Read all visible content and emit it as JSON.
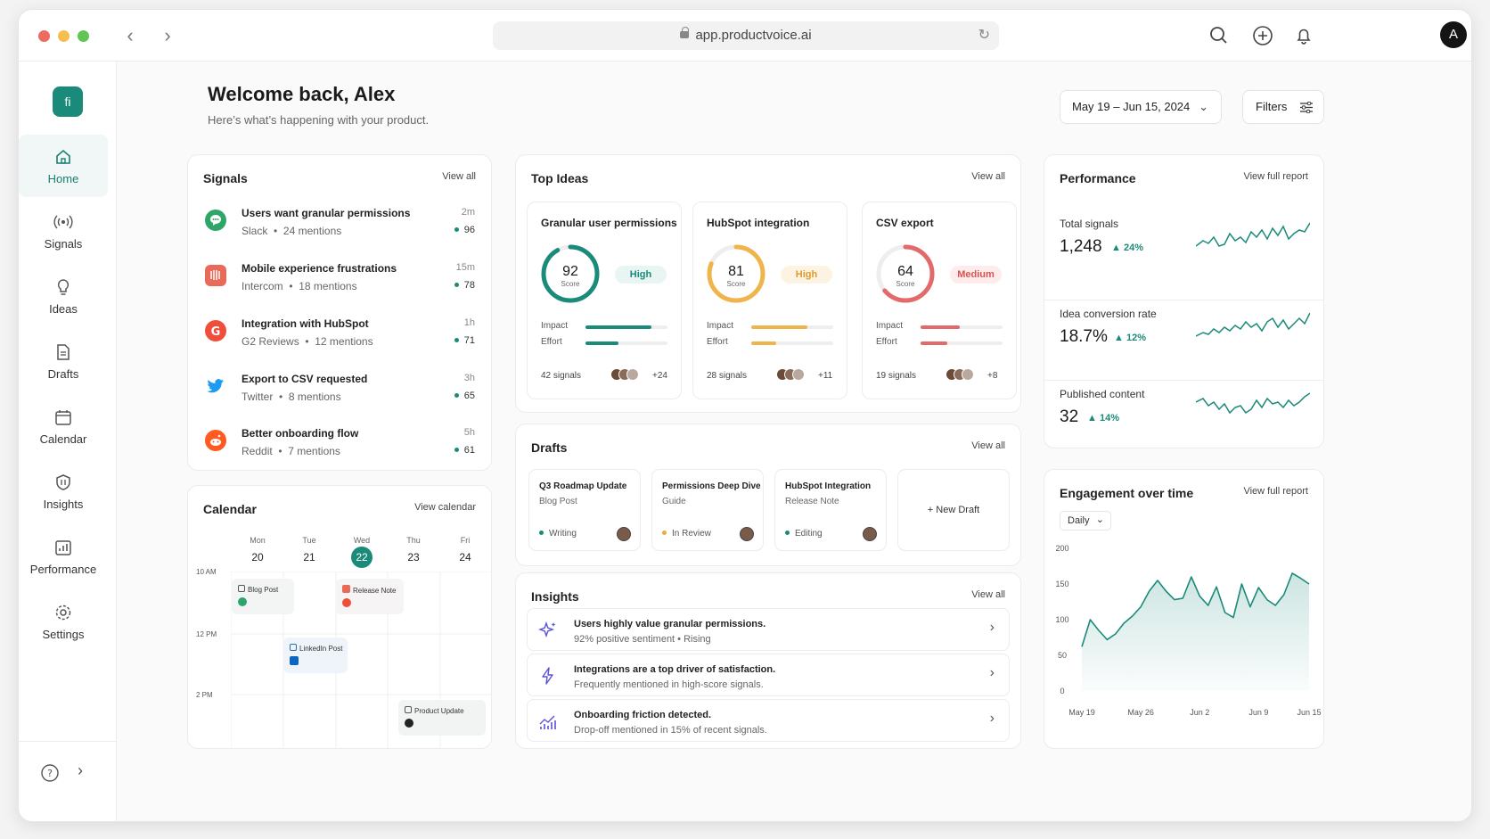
{
  "browser": {
    "url": "app.productvoice.ai",
    "avatar_letter": "A"
  },
  "sidebar": {
    "logo": "fi",
    "items": [
      {
        "label": "Home",
        "icon": "home-icon",
        "active": true
      },
      {
        "label": "Signals",
        "icon": "signals-icon"
      },
      {
        "label": "Ideas",
        "icon": "lightbulb-icon"
      },
      {
        "label": "Drafts",
        "icon": "document-icon"
      },
      {
        "label": "Calendar",
        "icon": "calendar-icon"
      },
      {
        "label": "Insights",
        "icon": "shield-icon"
      },
      {
        "label": "Performance",
        "icon": "bar-chart-icon"
      },
      {
        "label": "Settings",
        "icon": "gear-icon"
      }
    ]
  },
  "header": {
    "title": "Welcome back, Alex",
    "subtitle": "Here’s what’s happening with your product.",
    "date_range": "May 19 – Jun 15, 2024",
    "filters_label": "Filters"
  },
  "signals": {
    "title": "Signals",
    "link": "View all",
    "items": [
      {
        "title": "Users want granular permissions",
        "source": "Slack",
        "mentions": "24 mentions",
        "time": "2m",
        "score": "96"
      },
      {
        "title": "Mobile experience frustrations",
        "source": "Intercom",
        "mentions": "18 mentions",
        "time": "15m",
        "score": "78"
      },
      {
        "title": "Integration with HubSpot",
        "source": "G2 Reviews",
        "mentions": "12 mentions",
        "time": "1h",
        "score": "71"
      },
      {
        "title": "Export to CSV requested",
        "source": "Twitter",
        "mentions": "8 mentions",
        "time": "3h",
        "score": "65"
      },
      {
        "title": "Better onboarding flow",
        "source": "Reddit",
        "mentions": "7 mentions",
        "time": "5h",
        "score": "61"
      }
    ]
  },
  "top_ideas": {
    "title": "Top Ideas",
    "link": "View all",
    "items": [
      {
        "title": "Granular user permissions",
        "score": "92",
        "score_label": "Score",
        "priority": "High",
        "impact_label": "Impact",
        "effort_label": "Effort",
        "impact": 0.8,
        "effort": 0.4,
        "signals": "42 signals",
        "more": "+24",
        "color": "#1a8a7a"
      },
      {
        "title": "HubSpot integration",
        "score": "81",
        "score_label": "Score",
        "priority": "High",
        "impact_label": "Impact",
        "effort_label": "Effort",
        "impact": 0.68,
        "effort": 0.3,
        "signals": "28 signals",
        "more": "+11",
        "color": "#f0b54a"
      },
      {
        "title": "CSV export",
        "score": "64",
        "score_label": "Score",
        "priority": "Medium",
        "impact_label": "Impact",
        "effort_label": "Effort",
        "impact": 0.48,
        "effort": 0.33,
        "signals": "19 signals",
        "more": "+8",
        "color": "#e26a6a"
      }
    ]
  },
  "drafts": {
    "title": "Drafts",
    "link": "View all",
    "new_label": "+ New Draft",
    "items": [
      {
        "title": "Q3 Roadmap Update",
        "kind": "Blog Post",
        "status": "Writing",
        "color": "#1a8a7a"
      },
      {
        "title": "Permissions Deep Dive",
        "kind": "Guide",
        "status": "In Review",
        "color": "#f0a93c"
      },
      {
        "title": "HubSpot Integration",
        "kind": "Release Note",
        "status": "Editing",
        "color": "#1a8a7a"
      }
    ]
  },
  "insights": {
    "title": "Insights",
    "link": "View all",
    "items": [
      {
        "title": "Users highly value granular permissions.",
        "detail": "92% positive sentiment  •  Rising",
        "icon": "sparkle-icon"
      },
      {
        "title": "Integrations are a top driver of satisfaction.",
        "detail": "Frequently mentioned in high-score signals.",
        "icon": "lightning-icon"
      },
      {
        "title": "Onboarding friction detected.",
        "detail": "Drop-off mentioned in 15% of recent signals.",
        "icon": "trend-chart-icon"
      }
    ]
  },
  "calendar": {
    "title": "Calendar",
    "link": "View calendar",
    "days": [
      {
        "name": "Mon",
        "num": "20"
      },
      {
        "name": "Tue",
        "num": "21"
      },
      {
        "name": "Wed",
        "num": "22",
        "today": true
      },
      {
        "name": "Thu",
        "num": "23"
      },
      {
        "name": "Fri",
        "num": "24"
      }
    ],
    "times": [
      "10 AM",
      "12 PM",
      "2 PM"
    ],
    "events": [
      {
        "label": "Blog Post"
      },
      {
        "label": "Release Note"
      },
      {
        "label": "LinkedIn Post"
      },
      {
        "label": "Product Update"
      }
    ]
  },
  "performance": {
    "title": "Performance",
    "link": "View full report",
    "metrics": [
      {
        "label": "Total signals",
        "value": "1,248",
        "delta": "24%"
      },
      {
        "label": "Idea conversion rate",
        "value": "18.7%",
        "delta": "12%"
      },
      {
        "label": "Published content",
        "value": "32",
        "delta": "14%"
      }
    ]
  },
  "engagement": {
    "title": "Engagement over time",
    "link": "View full report",
    "period": "Daily"
  },
  "chart_data": {
    "type": "area",
    "title": "Engagement over time",
    "x": [
      "May 19",
      "May 20",
      "May 21",
      "May 22",
      "May 23",
      "May 24",
      "May 25",
      "May 26",
      "May 27",
      "May 28",
      "May 29",
      "May 30",
      "May 31",
      "Jun 1",
      "Jun 2",
      "Jun 3",
      "Jun 4",
      "Jun 5",
      "Jun 6",
      "Jun 7",
      "Jun 8",
      "Jun 9",
      "Jun 10",
      "Jun 11",
      "Jun 12",
      "Jun 13",
      "Jun 14",
      "Jun 15"
    ],
    "values": [
      62,
      100,
      85,
      72,
      80,
      95,
      105,
      118,
      140,
      155,
      140,
      128,
      130,
      160,
      133,
      120,
      146,
      110,
      103,
      150,
      118,
      145,
      128,
      120,
      135,
      165,
      158,
      150
    ],
    "xticks": [
      "May 19",
      "May 26",
      "Jun 2",
      "Jun 9",
      "Jun 15"
    ],
    "yticks": [
      "0",
      "50",
      "100",
      "150",
      "200"
    ],
    "ylim": [
      0,
      200
    ],
    "color": "#1a8a7a"
  }
}
